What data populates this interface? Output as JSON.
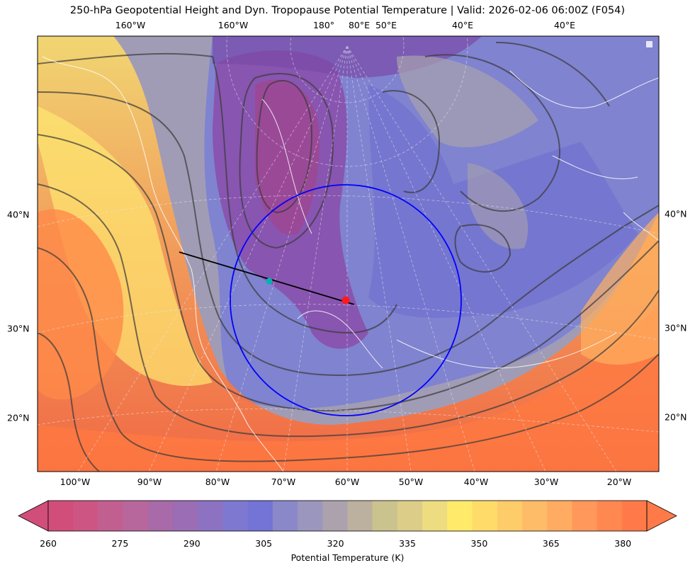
{
  "title": "250-hPa Geopotential Height and Dyn. Tropopause Potential Temperature   |  Valid: 2026-02-06 06:00Z (F054)",
  "top_lon_labels": [
    "160°W",
    "160°W",
    "180°",
    "80°E",
    "50°E",
    "40°E",
    "40°E"
  ],
  "bottom_lon_labels": [
    "100°W",
    "90°W",
    "80°W",
    "70°W",
    "60°W",
    "50°W",
    "40°W",
    "30°W",
    "20°W"
  ],
  "left_lat_labels": [
    "40°N",
    "30°N",
    "20°N"
  ],
  "right_lat_labels": [
    "40°N",
    "30°N",
    "20°N"
  ],
  "colorbar": {
    "label": "Potential Temperature (K)",
    "min": 260,
    "max": 385,
    "step": 5,
    "extend": "both",
    "tick_labels": [
      "260",
      "275",
      "290",
      "305",
      "320",
      "335",
      "350",
      "365",
      "380"
    ],
    "colors": [
      "#d24e7a",
      "#cd5583",
      "#c25f91",
      "#b8679d",
      "#a86aa8",
      "#9a6db4",
      "#8d72c2",
      "#7f78d1",
      "#7474d6",
      "#8b88c9",
      "#9b96bd",
      "#aba2ae",
      "#bcb09e",
      "#cbc38e",
      "#dccd88",
      "#eddc80",
      "#ffea6a",
      "#ffdc6a",
      "#ffcc6a",
      "#ffbc68",
      "#ffac62",
      "#ff985a",
      "#ff8850",
      "#ff7a48"
    ]
  },
  "markers": {
    "center_point_color": "#ff1a1a",
    "endpoint_color": "#00b3b3",
    "range_ring_color": "#0000ff",
    "track_line_color": "#000000"
  }
}
